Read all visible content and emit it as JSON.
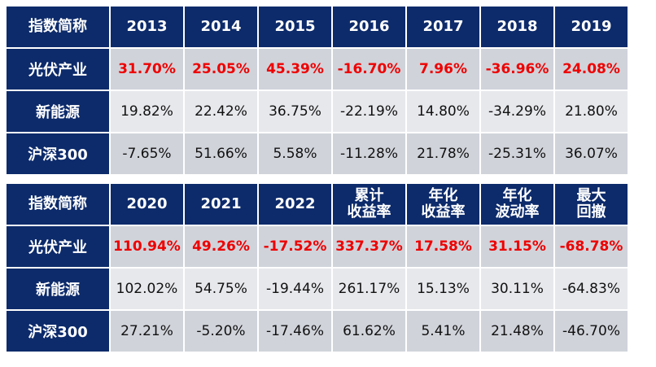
{
  "tables": [
    {
      "header": [
        "指数简称",
        "2013",
        "2014",
        "2015",
        "2016",
        "2017",
        "2018",
        "2019"
      ],
      "rows": [
        {
          "label": "光伏产业",
          "values": [
            "31.70%",
            "25.05%",
            "45.39%",
            "-16.70%",
            "7.96%",
            "-36.96%",
            "24.08%"
          ]
        },
        {
          "label": "新能源",
          "values": [
            "19.82%",
            "22.42%",
            "36.75%",
            "-22.19%",
            "14.80%",
            "-34.29%",
            "21.80%"
          ]
        },
        {
          "label": "沪深300",
          "values": [
            "-7.65%",
            "51.66%",
            "5.58%",
            "-11.28%",
            "21.78%",
            "-25.31%",
            "36.07%"
          ]
        }
      ]
    },
    {
      "header": [
        "指数简称",
        "2020",
        "2021",
        "2022",
        "累计\n收益率",
        "年化\n收益率",
        "年化\n波动率",
        "最大\n回撤"
      ],
      "rows": [
        {
          "label": "光伏产业",
          "values": [
            "110.94%",
            "49.26%",
            "-17.52%",
            "337.37%",
            "17.58%",
            "31.15%",
            "-68.78%"
          ]
        },
        {
          "label": "新能源",
          "values": [
            "102.02%",
            "54.75%",
            "-19.44%",
            "261.17%",
            "15.13%",
            "30.11%",
            "-64.83%"
          ]
        },
        {
          "label": "沪深300",
          "values": [
            "27.21%",
            "-5.20%",
            "-17.46%",
            "61.62%",
            "5.41%",
            "21.48%",
            "-46.70%"
          ]
        }
      ]
    }
  ],
  "colors": {
    "header_bg": "#0d2b6b",
    "header_text": "#ffffff",
    "highlight_text": "#ee0000",
    "row_dark": "#d0d3da",
    "row_light": "#e7e8ec"
  }
}
